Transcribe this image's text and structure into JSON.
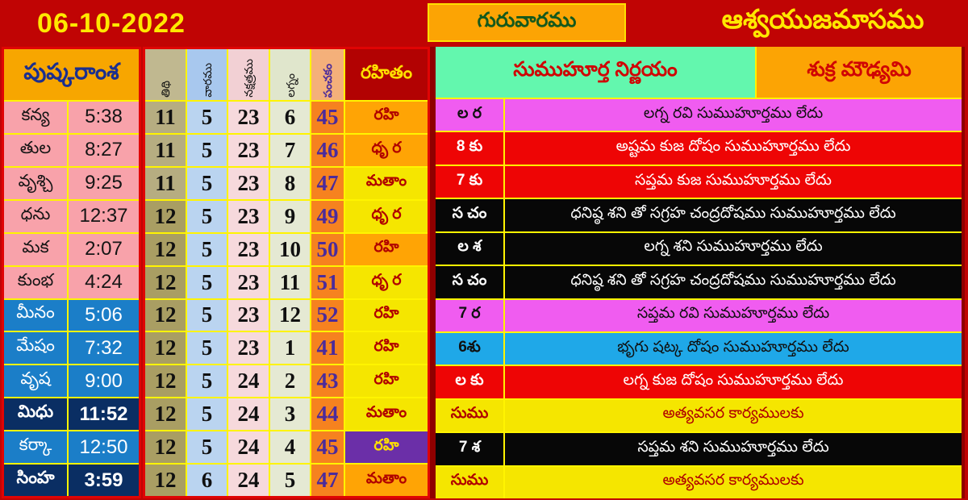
{
  "colors": {
    "canvas_red": "#C00404",
    "bright_row_red": "#EE0505",
    "border_yellow": "#FFF400",
    "maroon_divider": "#8F0000",
    "mint_header": "#63F7AE",
    "orange": "#FCA404",
    "magenta_row": "#F05CF0",
    "cyan_row": "#1FA8E8",
    "purple_cell": "#6B2FA8",
    "navy_row": "#0A2E63",
    "blue_row": "#1B7EC8",
    "pink_row": "#F8A2AA",
    "dark_red_text": "#B00000",
    "yellow_text": "#FFE800",
    "green_text": "#15591C"
  },
  "topbar": {
    "date": "06-10-2022",
    "weekday": "గురువారము",
    "month": "ఆశ్వయుజమాసము"
  },
  "left_table": {
    "title": "పుష్కరాంశ",
    "rows": [
      {
        "rasi": "కన్య",
        "time": "5:38",
        "style": "pink"
      },
      {
        "rasi": "తుల",
        "time": "8:27",
        "style": "pink"
      },
      {
        "rasi": "వృశ్చి",
        "time": "9:25",
        "style": "pink"
      },
      {
        "rasi": "ధను",
        "time": "12:37",
        "style": "pink"
      },
      {
        "rasi": "మక",
        "time": "2:07",
        "style": "pink"
      },
      {
        "rasi": "కుంభ",
        "time": "4:24",
        "style": "pink"
      },
      {
        "rasi": "మీనం",
        "time": "5:06",
        "style": "blue"
      },
      {
        "rasi": "మేషం",
        "time": "7:32",
        "style": "blue"
      },
      {
        "rasi": "వృష",
        "time": "9:00",
        "style": "blue"
      },
      {
        "rasi": "మిధు",
        "time": "11:52",
        "style": "navy"
      },
      {
        "rasi": "కర్కా",
        "time": "12:50",
        "style": "blue"
      },
      {
        "rasi": "సింహ",
        "time": "3:59",
        "style": "navy"
      }
    ]
  },
  "grid_table": {
    "column_headers": [
      {
        "key": "tithi",
        "label": "తిథి"
      },
      {
        "key": "vara",
        "label": "వారము"
      },
      {
        "key": "nakshatra",
        "label": "నక్షత్రము"
      },
      {
        "key": "lagna",
        "label": "లగ్నం"
      },
      {
        "key": "panchakam",
        "label": "పంచకం"
      }
    ],
    "rahitam_header": "రహితం",
    "rows": [
      {
        "tithi": 11,
        "vara": 5,
        "nakshatra": 23,
        "lagna": 6,
        "panchakam": 45,
        "rahitam": "రహి",
        "rahitam_style": "orange",
        "tithi_shade": "light"
      },
      {
        "tithi": 11,
        "vara": 5,
        "nakshatra": 23,
        "lagna": 7,
        "panchakam": 46,
        "rahitam": "ధృ ర",
        "rahitam_style": "orange",
        "tithi_shade": "light"
      },
      {
        "tithi": 11,
        "vara": 5,
        "nakshatra": 23,
        "lagna": 8,
        "panchakam": 47,
        "rahitam": "మతాం",
        "rahitam_style": "yellow",
        "tithi_shade": "light"
      },
      {
        "tithi": 12,
        "vara": 5,
        "nakshatra": 23,
        "lagna": 9,
        "panchakam": 49,
        "rahitam": "ధృ ర",
        "rahitam_style": "yellow",
        "tithi_shade": "dark"
      },
      {
        "tithi": 12,
        "vara": 5,
        "nakshatra": 23,
        "lagna": 10,
        "panchakam": 50,
        "rahitam": "రహి",
        "rahitam_style": "orange",
        "tithi_shade": "dark"
      },
      {
        "tithi": 12,
        "vara": 5,
        "nakshatra": 23,
        "lagna": 11,
        "panchakam": 51,
        "rahitam": "ధృ ర",
        "rahitam_style": "yellow",
        "tithi_shade": "dark"
      },
      {
        "tithi": 12,
        "vara": 5,
        "nakshatra": 23,
        "lagna": 12,
        "panchakam": 52,
        "rahitam": "రహి",
        "rahitam_style": "yellow",
        "tithi_shade": "dark"
      },
      {
        "tithi": 12,
        "vara": 5,
        "nakshatra": 23,
        "lagna": 1,
        "panchakam": 41,
        "rahitam": "రహి",
        "rahitam_style": "yellow",
        "tithi_shade": "dark"
      },
      {
        "tithi": 12,
        "vara": 5,
        "nakshatra": 24,
        "lagna": 2,
        "panchakam": 43,
        "rahitam": "రహి",
        "rahitam_style": "yellow",
        "tithi_shade": "dark"
      },
      {
        "tithi": 12,
        "vara": 5,
        "nakshatra": 24,
        "lagna": 3,
        "panchakam": 44,
        "rahitam": "మతాం",
        "rahitam_style": "yellow",
        "tithi_shade": "dark"
      },
      {
        "tithi": 12,
        "vara": 5,
        "nakshatra": 24,
        "lagna": 4,
        "panchakam": 45,
        "rahitam": "రహి",
        "rahitam_style": "purple",
        "tithi_shade": "dark"
      },
      {
        "tithi": 12,
        "vara": 6,
        "nakshatra": 24,
        "lagna": 5,
        "panchakam": 47,
        "rahitam": "మతాం",
        "rahitam_style": "orange",
        "tithi_shade": "dark"
      }
    ]
  },
  "right_panel": {
    "header_main": "సుముహూర్త నిర్ణయం",
    "header_side": "శుక్ర మౌఢ్యమి",
    "rows": [
      {
        "label": "ల ర",
        "message": "లగ్న రవి సుముహూర్తము లేదు",
        "style": "magenta"
      },
      {
        "label": "8 కు",
        "message": "అష్టమ కుజ దోషం సుముహూర్తము లేదు",
        "style": "red"
      },
      {
        "label": "7 కు",
        "message": "సప్తమ కుజ సుముహూర్తము లేదు",
        "style": "red"
      },
      {
        "label": "స చం",
        "message": "ధనిష్ఠ శని తో సగ్రహ చంద్రదోషము సుముహూర్తము లేదు",
        "style": "black"
      },
      {
        "label": "ల శ",
        "message": "లగ్న శని  సుముహూర్తము లేదు",
        "style": "black"
      },
      {
        "label": "స చం",
        "message": "ధనిష్ఠ శని తో సగ్రహ చంద్రదోషము సుముహూర్తము లేదు",
        "style": "black"
      },
      {
        "label": "7 ర",
        "message": "సప్తమ  రవి సుముహూర్తము లేదు",
        "style": "magenta"
      },
      {
        "label": "6శు",
        "message": "భృగు షట్క దోషం సుముహూర్తము లేదు",
        "style": "cyan"
      },
      {
        "label": "ల కు",
        "message": "లగ్న  కుజ దోషం సుముహూర్తము లేదు",
        "style": "red"
      },
      {
        "label": "సుము",
        "message": "అత్యవసర కార్యములకు",
        "style": "yellow"
      },
      {
        "label": "7 శ",
        "message": "సప్తమ శని సుముహూర్తము లేదు",
        "style": "black"
      },
      {
        "label": "సుము",
        "message": "అత్యవసర కార్యములకు",
        "style": "yellow"
      }
    ]
  }
}
